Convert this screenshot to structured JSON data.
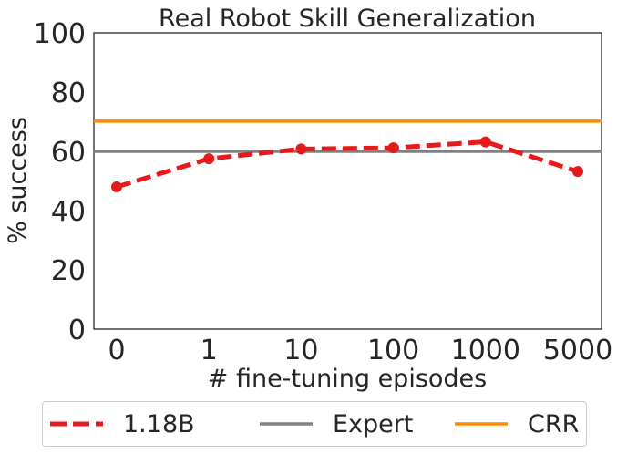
{
  "chart_data": {
    "type": "line",
    "title": "Real Robot Skill Generalization",
    "xlabel": "# fine-tuning episodes",
    "ylabel": "% success",
    "categories": [
      "0",
      "1",
      "10",
      "100",
      "1000",
      "5000"
    ],
    "ylim": [
      0,
      100
    ],
    "yticks": [
      0,
      20,
      40,
      60,
      80,
      100
    ],
    "grid": false,
    "legend_placement": "bottom",
    "series": [
      {
        "name": "1.18B",
        "style": "dashed-markers",
        "color": "#e41a1c",
        "values": [
          48,
          57.5,
          60.8,
          61.2,
          63.2,
          53.2
        ]
      },
      {
        "name": "Expert",
        "style": "horizontal-line",
        "color": "#808080",
        "value": 60
      },
      {
        "name": "CRR",
        "style": "horizontal-line",
        "color": "#ff8c00",
        "value": 70.2
      }
    ]
  }
}
